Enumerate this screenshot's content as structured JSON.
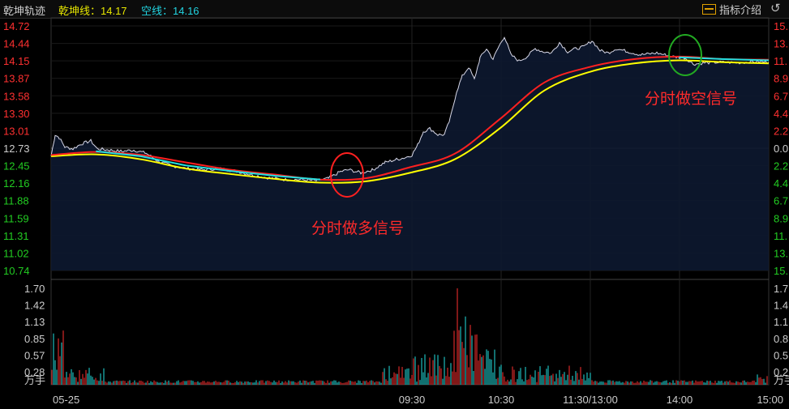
{
  "header": {
    "title": "乾坤轨迹",
    "line1_label": "乾坤线：14.17",
    "line2_label": "空线：14.16",
    "indicator_button": "指标介绍",
    "settings_icon": "refresh-icon"
  },
  "price_axis_left": [
    "14.72",
    "14.44",
    "14.15",
    "13.87",
    "13.58",
    "13.30",
    "13.01",
    "12.73",
    "12.45",
    "12.16",
    "11.88",
    "11.59",
    "11.31",
    "11.02",
    "10.74"
  ],
  "pct_axis_right": [
    "15.",
    "13.",
    "11.",
    "8.9",
    "6.7",
    "4.4",
    "2.2",
    "0.0",
    "2.2",
    "4.4",
    "6.7",
    "8.9",
    "11.",
    "13.",
    "15."
  ],
  "volume_axis_left": [
    "1.70",
    "1.42",
    "1.13",
    "0.85",
    "0.57",
    "0.28"
  ],
  "volume_axis_right": [
    "1.7",
    "1.4",
    "1.1",
    "0.8",
    "0.5",
    "0.2"
  ],
  "volume_unit": "万手",
  "time_axis": [
    "05-25",
    "09:30",
    "10:30",
    "11:30/13:00",
    "14:00",
    "15:00"
  ],
  "annotations": {
    "buy_signal": "分时做多信号",
    "sell_signal": "分时做空信号"
  },
  "colors": {
    "up": "#ff3030",
    "down": "#22cc22",
    "yellow_line": "#ffff00",
    "red_line": "#ff2020",
    "cyan_line": "#22e0e0",
    "price_line": "#d8d8e8",
    "buy_circle": "#ff2020",
    "sell_circle": "#22aa22"
  },
  "chart_data": {
    "type": "line",
    "title": "",
    "ylim": [
      10.74,
      14.72
    ],
    "reference_price": 12.73,
    "series": [
      {
        "name": "乾坤线",
        "values": [
          12.62,
          12.67,
          12.62,
          12.5,
          12.38,
          12.3,
          12.22,
          12.24,
          12.42,
          12.64,
          13.2,
          13.8,
          14.05,
          14.18,
          14.22,
          14.18,
          14.17
        ]
      },
      {
        "name": "空线",
        "values": [
          12.65,
          12.68,
          12.6,
          12.45,
          12.36,
          12.28,
          12.22,
          12.24,
          12.38,
          12.6,
          13.1,
          13.72,
          14.02,
          14.16,
          14.21,
          14.18,
          14.16
        ]
      }
    ],
    "volume_ylim": [
      0,
      1.7
    ]
  }
}
